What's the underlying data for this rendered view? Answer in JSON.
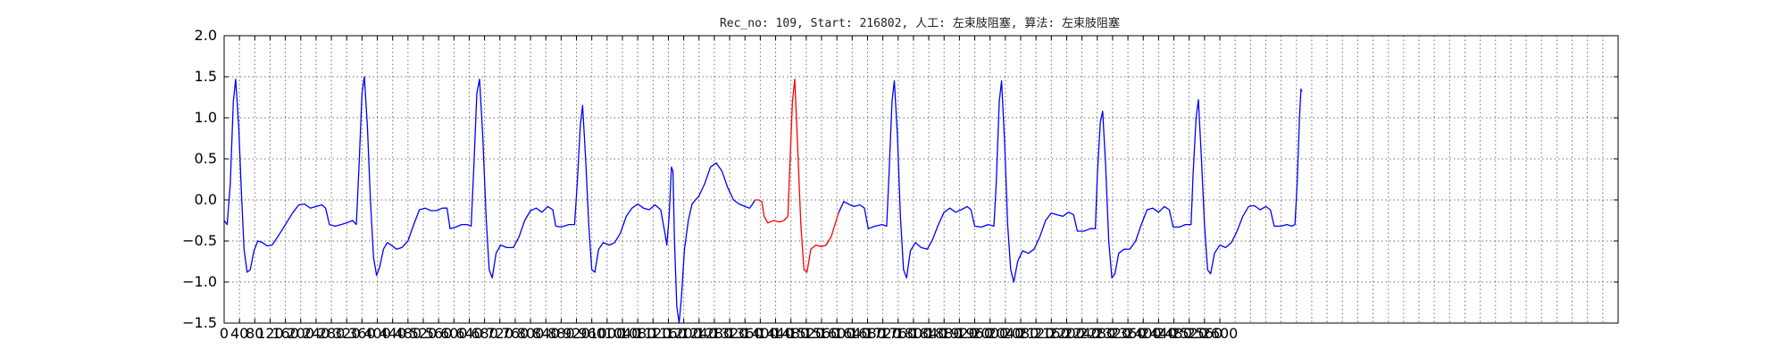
{
  "chart_data": {
    "type": "line",
    "title": "Rec_no: 109, Start: 216802, 人工: 左束肢阻塞, 算法: 左束肢阻塞",
    "xlabel": "",
    "ylabel": "",
    "xlim": [
      0,
      3640
    ],
    "ylim": [
      -1.5,
      2.0
    ],
    "grid": true,
    "x_tick_step": 40,
    "x_ticks": [
      0,
      40,
      80,
      120,
      160,
      200,
      240,
      280,
      320,
      360,
      400,
      440,
      480,
      520,
      560,
      600,
      640,
      680,
      720,
      760,
      800,
      840,
      880,
      920,
      960,
      1000,
      1040,
      1080,
      1120,
      1160,
      1200,
      1240,
      1280,
      1320,
      1360,
      1400,
      1440,
      1480,
      1520,
      1560,
      1600,
      1640,
      1680,
      1720,
      1760,
      1800,
      1840,
      1880,
      1920,
      1960,
      2000,
      2040,
      2080,
      2120,
      2160,
      2200,
      2240,
      2280,
      2320,
      2360,
      2400,
      2440,
      2480,
      2520,
      2560,
      2600
    ],
    "y_ticks": [
      -1.5,
      -1.0,
      -0.5,
      0.0,
      0.5,
      1.0,
      1.5,
      2.0
    ],
    "y_tick_labels": [
      "−1.5",
      "−1.0",
      "−0.5",
      "0.0",
      "0.5",
      "1.0",
      "1.5",
      "2.0"
    ],
    "series": [
      {
        "color": "#0000ff",
        "points": [
          [
            0,
            -0.25
          ],
          [
            8,
            -0.3
          ],
          [
            16,
            0.2
          ],
          [
            24,
            1.2
          ],
          [
            30,
            1.47
          ],
          [
            38,
            0.9
          ],
          [
            45,
            0.1
          ],
          [
            52,
            -0.6
          ],
          [
            60,
            -0.88
          ],
          [
            68,
            -0.85
          ],
          [
            78,
            -0.62
          ],
          [
            88,
            -0.5
          ],
          [
            100,
            -0.52
          ],
          [
            112,
            -0.56
          ],
          [
            125,
            -0.55
          ],
          [
            140,
            -0.45
          ],
          [
            160,
            -0.3
          ],
          [
            180,
            -0.15
          ],
          [
            195,
            -0.06
          ],
          [
            210,
            -0.05
          ],
          [
            225,
            -0.1
          ],
          [
            240,
            -0.08
          ],
          [
            255,
            -0.06
          ],
          [
            265,
            -0.1
          ],
          [
            275,
            -0.3
          ],
          [
            290,
            -0.32
          ],
          [
            305,
            -0.3
          ],
          [
            320,
            -0.28
          ],
          [
            335,
            -0.25
          ],
          [
            345,
            -0.3
          ],
          [
            352,
            0.4
          ],
          [
            360,
            1.3
          ],
          [
            366,
            1.5
          ],
          [
            374,
            0.9
          ],
          [
            382,
            0.0
          ],
          [
            390,
            -0.7
          ],
          [
            398,
            -0.92
          ],
          [
            406,
            -0.82
          ],
          [
            416,
            -0.6
          ],
          [
            426,
            -0.52
          ],
          [
            436,
            -0.55
          ],
          [
            450,
            -0.6
          ],
          [
            464,
            -0.58
          ],
          [
            480,
            -0.5
          ],
          [
            495,
            -0.3
          ],
          [
            510,
            -0.12
          ],
          [
            525,
            -0.1
          ],
          [
            540,
            -0.13
          ],
          [
            555,
            -0.13
          ],
          [
            570,
            -0.1
          ],
          [
            582,
            -0.1
          ],
          [
            590,
            -0.35
          ],
          [
            605,
            -0.33
          ],
          [
            620,
            -0.3
          ],
          [
            635,
            -0.3
          ],
          [
            645,
            -0.32
          ],
          [
            652,
            0.4
          ],
          [
            660,
            1.3
          ],
          [
            667,
            1.47
          ],
          [
            675,
            0.8
          ],
          [
            684,
            -0.2
          ],
          [
            692,
            -0.85
          ],
          [
            700,
            -0.95
          ],
          [
            710,
            -0.65
          ],
          [
            722,
            -0.55
          ],
          [
            738,
            -0.58
          ],
          [
            755,
            -0.58
          ],
          [
            770,
            -0.45
          ],
          [
            785,
            -0.25
          ],
          [
            800,
            -0.13
          ],
          [
            815,
            -0.1
          ],
          [
            830,
            -0.15
          ],
          [
            845,
            -0.08
          ],
          [
            858,
            -0.12
          ],
          [
            866,
            -0.32
          ],
          [
            880,
            -0.33
          ],
          [
            900,
            -0.3
          ],
          [
            915,
            -0.3
          ],
          [
            922,
            0.2
          ],
          [
            930,
            0.9
          ],
          [
            936,
            1.15
          ],
          [
            944,
            0.5
          ],
          [
            952,
            -0.3
          ],
          [
            960,
            -0.85
          ],
          [
            968,
            -0.88
          ],
          [
            978,
            -0.6
          ],
          [
            990,
            -0.52
          ],
          [
            1006,
            -0.55
          ],
          [
            1020,
            -0.52
          ],
          [
            1035,
            -0.4
          ],
          [
            1050,
            -0.2
          ],
          [
            1065,
            -0.1
          ],
          [
            1080,
            -0.05
          ],
          [
            1095,
            -0.1
          ],
          [
            1110,
            -0.12
          ],
          [
            1125,
            -0.06
          ],
          [
            1140,
            -0.12
          ],
          [
            1150,
            -0.38
          ],
          [
            1156,
            -0.55
          ],
          [
            1162,
            -0.2
          ],
          [
            1168,
            0.4
          ],
          [
            1172,
            0.35
          ],
          [
            1176,
            -0.5
          ],
          [
            1182,
            -1.3
          ],
          [
            1188,
            -1.5
          ],
          [
            1194,
            -1.2
          ],
          [
            1202,
            -0.6
          ],
          [
            1212,
            -0.25
          ],
          [
            1222,
            -0.05
          ],
          [
            1240,
            0.05
          ],
          [
            1255,
            0.2
          ],
          [
            1270,
            0.4
          ],
          [
            1285,
            0.45
          ],
          [
            1300,
            0.35
          ],
          [
            1315,
            0.15
          ],
          [
            1330,
            0.0
          ],
          [
            1345,
            -0.05
          ],
          [
            1360,
            -0.08
          ],
          [
            1372,
            -0.1
          ],
          [
            1380,
            -0.05
          ],
          [
            1386,
            0.0
          ]
        ]
      },
      {
        "color": "#ff0000",
        "points": [
          [
            1386,
            0.0
          ],
          [
            1396,
            0.0
          ],
          [
            1404,
            -0.02
          ],
          [
            1410,
            -0.2
          ],
          [
            1420,
            -0.28
          ],
          [
            1435,
            -0.25
          ],
          [
            1450,
            -0.27
          ],
          [
            1462,
            -0.25
          ],
          [
            1472,
            -0.2
          ],
          [
            1478,
            0.5
          ],
          [
            1484,
            1.2
          ],
          [
            1490,
            1.47
          ],
          [
            1498,
            0.6
          ],
          [
            1506,
            -0.3
          ],
          [
            1514,
            -0.85
          ],
          [
            1522,
            -0.88
          ],
          [
            1532,
            -0.6
          ],
          [
            1545,
            -0.55
          ],
          [
            1560,
            -0.57
          ],
          [
            1572,
            -0.55
          ],
          [
            1585,
            -0.45
          ],
          [
            1595,
            -0.3
          ],
          [
            1605,
            -0.15
          ]
        ]
      },
      {
        "color": "#0000ff",
        "points": [
          [
            1605,
            -0.15
          ],
          [
            1618,
            -0.02
          ],
          [
            1630,
            -0.05
          ],
          [
            1645,
            -0.08
          ],
          [
            1660,
            -0.06
          ],
          [
            1672,
            -0.1
          ],
          [
            1682,
            -0.35
          ],
          [
            1700,
            -0.32
          ],
          [
            1718,
            -0.3
          ],
          [
            1730,
            -0.32
          ],
          [
            1736,
            0.3
          ],
          [
            1744,
            1.2
          ],
          [
            1750,
            1.45
          ],
          [
            1758,
            0.8
          ],
          [
            1766,
            -0.2
          ],
          [
            1774,
            -0.85
          ],
          [
            1782,
            -0.95
          ],
          [
            1792,
            -0.62
          ],
          [
            1805,
            -0.52
          ],
          [
            1820,
            -0.58
          ],
          [
            1836,
            -0.6
          ],
          [
            1850,
            -0.48
          ],
          [
            1865,
            -0.3
          ],
          [
            1880,
            -0.15
          ],
          [
            1895,
            -0.1
          ],
          [
            1910,
            -0.15
          ],
          [
            1925,
            -0.12
          ],
          [
            1940,
            -0.08
          ],
          [
            1950,
            -0.12
          ],
          [
            1960,
            -0.32
          ],
          [
            1978,
            -0.33
          ],
          [
            1995,
            -0.3
          ],
          [
            2010,
            -0.32
          ],
          [
            2016,
            0.2
          ],
          [
            2024,
            1.2
          ],
          [
            2030,
            1.45
          ],
          [
            2038,
            0.7
          ],
          [
            2046,
            -0.3
          ],
          [
            2054,
            -0.85
          ],
          [
            2062,
            -1.0
          ],
          [
            2072,
            -0.75
          ],
          [
            2085,
            -0.62
          ],
          [
            2100,
            -0.65
          ],
          [
            2115,
            -0.6
          ],
          [
            2130,
            -0.45
          ],
          [
            2145,
            -0.25
          ],
          [
            2160,
            -0.16
          ],
          [
            2175,
            -0.18
          ],
          [
            2190,
            -0.2
          ],
          [
            2205,
            -0.15
          ],
          [
            2218,
            -0.18
          ],
          [
            2228,
            -0.38
          ],
          [
            2245,
            -0.38
          ],
          [
            2262,
            -0.35
          ],
          [
            2275,
            -0.35
          ],
          [
            2280,
            0.3
          ],
          [
            2288,
            0.95
          ],
          [
            2294,
            1.08
          ],
          [
            2302,
            0.4
          ],
          [
            2310,
            -0.5
          ],
          [
            2318,
            -0.95
          ],
          [
            2326,
            -0.9
          ],
          [
            2336,
            -0.65
          ],
          [
            2350,
            -0.6
          ],
          [
            2365,
            -0.6
          ],
          [
            2380,
            -0.5
          ],
          [
            2395,
            -0.3
          ],
          [
            2410,
            -0.12
          ],
          [
            2425,
            -0.1
          ],
          [
            2440,
            -0.15
          ],
          [
            2455,
            -0.08
          ],
          [
            2468,
            -0.12
          ],
          [
            2478,
            -0.33
          ],
          [
            2495,
            -0.33
          ],
          [
            2510,
            -0.3
          ],
          [
            2525,
            -0.3
          ],
          [
            2530,
            0.3
          ],
          [
            2538,
            1.0
          ],
          [
            2544,
            1.22
          ],
          [
            2552,
            0.5
          ],
          [
            2560,
            -0.3
          ],
          [
            2568,
            -0.85
          ],
          [
            2576,
            -0.9
          ],
          [
            2586,
            -0.65
          ],
          [
            2600,
            -0.55
          ],
          [
            2615,
            -0.58
          ],
          [
            2630,
            -0.52
          ],
          [
            2645,
            -0.38
          ],
          [
            2660,
            -0.2
          ],
          [
            2675,
            -0.08
          ],
          [
            2690,
            -0.07
          ],
          [
            2705,
            -0.12
          ],
          [
            2720,
            -0.08
          ],
          [
            2732,
            -0.12
          ],
          [
            2742,
            -0.32
          ],
          [
            2760,
            -0.32
          ],
          [
            2775,
            -0.3
          ],
          [
            2788,
            -0.32
          ],
          [
            2796,
            -0.3
          ],
          [
            2802,
            0.2
          ],
          [
            2808,
            1.0
          ],
          [
            2812,
            1.35
          ],
          [
            2814,
            1.32
          ]
        ]
      }
    ]
  }
}
